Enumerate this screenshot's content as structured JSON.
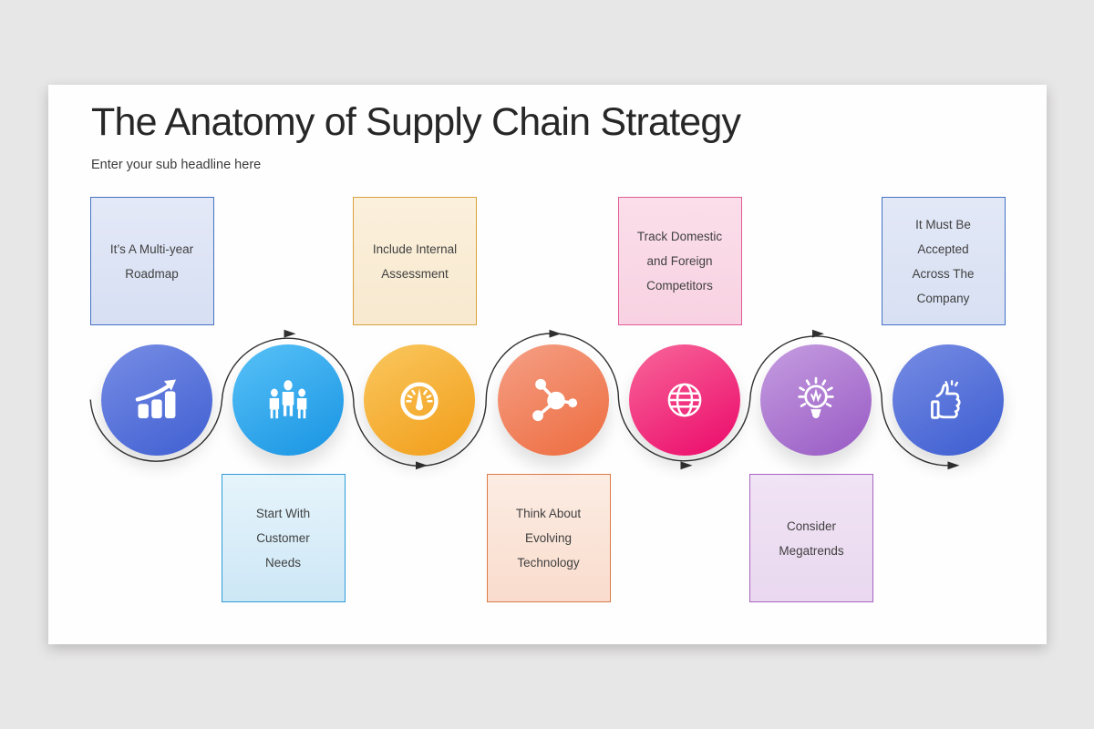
{
  "window": {
    "background": "#e8e7e7"
  },
  "slide": {
    "background": "#fefefe"
  },
  "header": {
    "title": "The Anatomy of Supply Chain Strategy",
    "title_color": "#272727",
    "subtitle": "Enter your sub headline here",
    "subtitle_color": "#3c3c3c"
  },
  "flow": {
    "line_color": "#303030"
  },
  "steps": [
    {
      "label": "It’s A Multi-year\nRoadmap",
      "position": "top",
      "icon": "bar-chart-growth-icon",
      "circle_gradient": [
        "#7389e3",
        "#4463d3"
      ],
      "box_bg": [
        "#e3e9f7",
        "#d7dff3"
      ],
      "box_border": "#4472c4",
      "label_color": "#404040"
    },
    {
      "label": "Start With\nCustomer\nNeeds",
      "position": "bottom",
      "icon": "people-icon",
      "circle_gradient": [
        "#53bef6",
        "#1d97e4"
      ],
      "box_bg": [
        "#e6f4fb",
        "#cde7f6"
      ],
      "box_border": "#2f9cd8",
      "label_color": "#404040"
    },
    {
      "label": "Include Internal\nAssessment",
      "position": "top",
      "icon": "gauge-icon",
      "circle_gradient": [
        "#f9c459",
        "#f2a01e"
      ],
      "box_bg": [
        "#fbf0dc",
        "#f8e9cf"
      ],
      "box_border": "#d9a23f",
      "label_color": "#404040"
    },
    {
      "label": "Think About\nEvolving\nTechnology",
      "position": "bottom",
      "icon": "network-icon",
      "circle_gradient": [
        "#f49b80",
        "#ee7044"
      ],
      "box_bg": [
        "#fcece3",
        "#f9dccd"
      ],
      "box_border": "#dd7a45",
      "label_color": "#404040"
    },
    {
      "label": "Track Domestic\nand Foreign\nCompetitors",
      "position": "top",
      "icon": "globe-icon",
      "circle_gradient": [
        "#f75f96",
        "#ec106e"
      ],
      "box_bg": [
        "#fbdeea",
        "#f8d2e2"
      ],
      "box_border": "#e25b95",
      "label_color": "#404040"
    },
    {
      "label": "Consider\nMegatrends",
      "position": "bottom",
      "icon": "lightbulb-icon",
      "circle_gradient": [
        "#c298de",
        "#9b5fc6"
      ],
      "box_bg": [
        "#f1e4f5",
        "#e9d8ef"
      ],
      "box_border": "#a764c2",
      "label_color": "#404040"
    },
    {
      "label": "It Must Be\nAccepted\nAcross The\nCompany",
      "position": "top",
      "icon": "thumbs-up-icon",
      "circle_gradient": [
        "#7288e2",
        "#4161d2"
      ],
      "box_bg": [
        "#e2e8f6",
        "#d8e0f3"
      ],
      "box_border": "#4472c4",
      "label_color": "#404040"
    }
  ]
}
